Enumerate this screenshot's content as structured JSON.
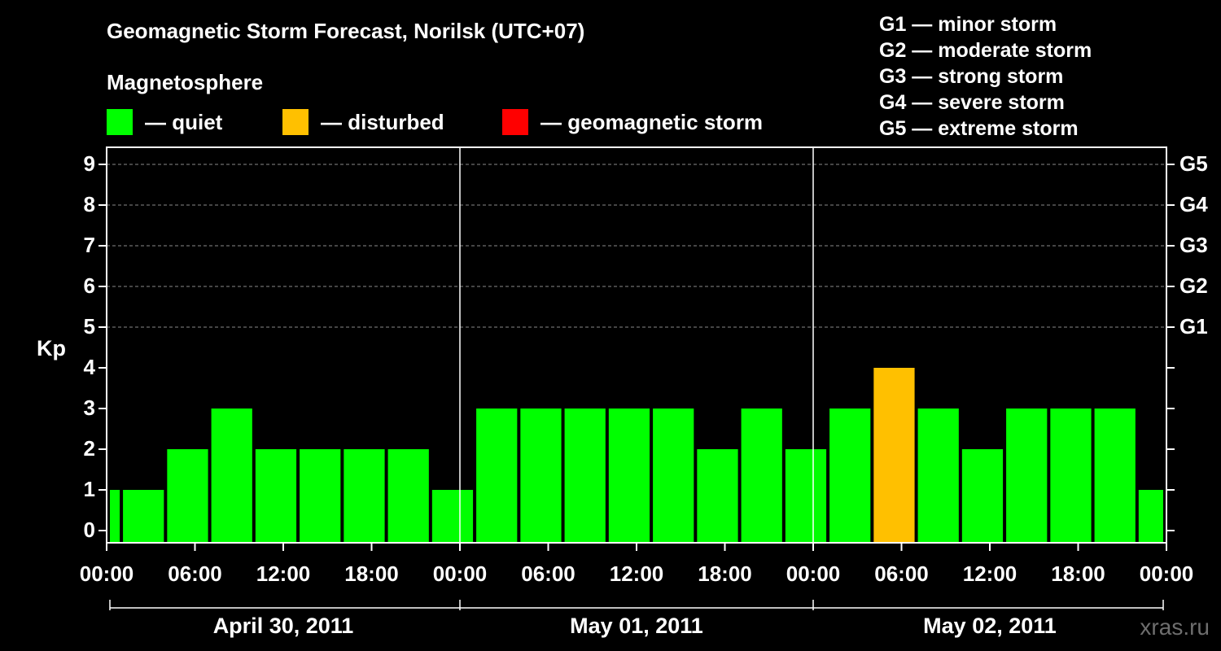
{
  "header": {
    "title": "Geomagnetic Storm Forecast, Norilsk (UTC+07)",
    "subtitle": "Magnetosphere",
    "watermark": "xras.ru"
  },
  "legend": {
    "items": [
      {
        "label": "— quiet",
        "color": "#00ff00"
      },
      {
        "label": "— disturbed",
        "color": "#ffc000"
      },
      {
        "label": "— geomagnetic storm",
        "color": "#ff0000"
      }
    ]
  },
  "storm_scale": [
    "G1 — minor storm",
    "G2 — moderate storm",
    "G3 — strong storm",
    "G4 — severe storm",
    "G5 — extreme storm"
  ],
  "chart_data": {
    "type": "bar",
    "title": "Geomagnetic Storm Forecast, Norilsk (UTC+07)",
    "ylabel": "Kp",
    "ylim": [
      0,
      9
    ],
    "yticks": [
      0,
      1,
      2,
      3,
      4,
      5,
      6,
      7,
      8,
      9
    ],
    "right_ticks": [
      {
        "kp": 5,
        "label": "G1"
      },
      {
        "kp": 6,
        "label": "G2"
      },
      {
        "kp": 7,
        "label": "G3"
      },
      {
        "kp": 8,
        "label": "G4"
      },
      {
        "kp": 9,
        "label": "G5"
      }
    ],
    "xlim_hours": [
      0,
      72
    ],
    "xtick_labels": [
      "00:00",
      "06:00",
      "12:00",
      "18:00",
      "00:00",
      "06:00",
      "12:00",
      "18:00",
      "00:00",
      "06:00",
      "12:00",
      "18:00",
      "00:00"
    ],
    "days": [
      "April 30, 2011",
      "May 01, 2011",
      "May 02, 2011"
    ],
    "bin_hours": 3,
    "bin_offset_hours": -2,
    "values": [
      1,
      1,
      2,
      3,
      2,
      2,
      2,
      2,
      1,
      3,
      3,
      3,
      3,
      3,
      2,
      3,
      2,
      3,
      4,
      3,
      2,
      3,
      3,
      3,
      1
    ],
    "color_thresholds": {
      "quiet_max": 3,
      "disturbed_max": 4
    },
    "grid": "horizontal dashed at Kp 5-9"
  }
}
